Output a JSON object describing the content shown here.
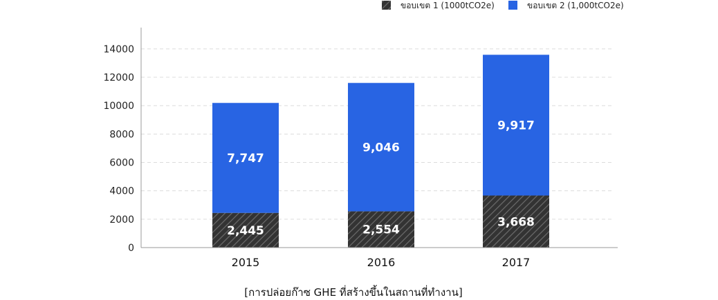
{
  "chart_data": {
    "type": "bar",
    "stacked": true,
    "categories": [
      "2015",
      "2016",
      "2017"
    ],
    "series": [
      {
        "name": "ขอบเขต 1 (1000tCO2e)",
        "values": [
          2445,
          2554,
          3668
        ],
        "value_labels": [
          "2,445",
          "2,554",
          "3,668"
        ],
        "color": "#333333",
        "pattern": "diagonal-hatch"
      },
      {
        "name": "ขอบเขต 2 (1,000tCO2e)",
        "values": [
          7747,
          9046,
          9917
        ],
        "value_labels": [
          "7,747",
          "9,046",
          "9,917"
        ],
        "color": "#2864e3"
      }
    ],
    "yticks": [
      "0",
      "2000",
      "4000",
      "6000",
      "8000",
      "10000",
      "12000",
      "14000"
    ],
    "ylim": [
      0,
      15500
    ],
    "grid": true,
    "legend_position": "top-right",
    "caption": "[การปล่อยก๊าซ GHE ที่สร้างขึ้นในสถานที่ทำงาน]"
  }
}
